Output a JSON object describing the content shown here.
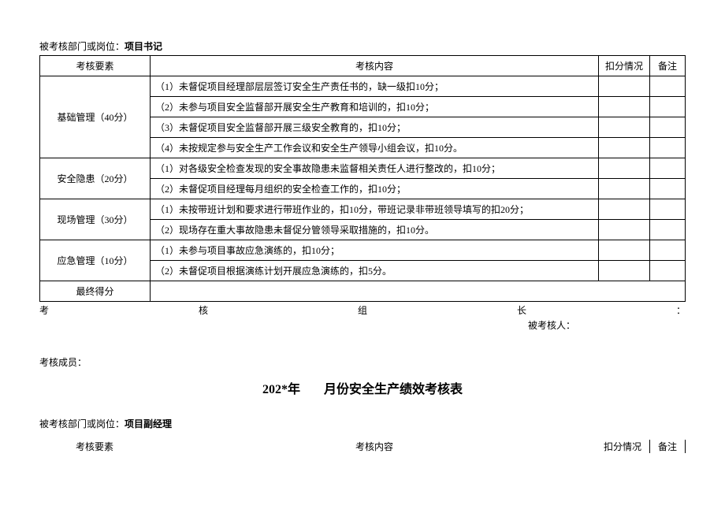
{
  "section1": {
    "header_label": "被考核部门或岗位：",
    "header_value": "项目书记",
    "table": {
      "headers": {
        "element": "考核要素",
        "content": "考核内容",
        "deduction": "扣分情况",
        "remark": "备注"
      },
      "groups": [
        {
          "element": "基础管理（40分）",
          "items": [
            "（1）未督促项目经理部层层签订安全生产责任书的，缺一级扣10分；",
            "（2）未参与项目安全监督部开展安全生产教育和培训的，扣10分；",
            "（3）未督促项目安全监督部开展三级安全教育的，扣10分；",
            "（4）未按规定参与安全生产工作会议和安全生产领导小组会议，扣10分。"
          ]
        },
        {
          "element": "安全隐患（20分）",
          "items": [
            "（1）对各级安全检查发现的安全事故隐患未监督相关责任人进行整改的，扣10分；",
            "（2）未督促项目经理每月组织的安全检查工作的，扣10分；"
          ]
        },
        {
          "element": "现场管理（30分）",
          "items": [
            "（1）未按带班计划和要求进行带班作业的，扣10分，带班记录非带班领导填写的扣20分；",
            "（2）现场存在重大事故隐患未督促分管领导采取措施的，扣10分。"
          ]
        },
        {
          "element": "应急管理（10分）",
          "items": [
            "（1）未参与项目事故应急演练的，扣10分；",
            "（2）未督促项目根据演练计划开展应急演练的，扣5分。"
          ]
        }
      ],
      "final_row": "最终得分"
    },
    "sig1_a": "考",
    "sig1_b": "核",
    "sig1_c": "组",
    "sig1_d": "长",
    "sig1_e": "：",
    "sig2": "被考核人：",
    "members": "考核成员："
  },
  "section2": {
    "title_prefix": "202*年",
    "title_suffix": "月份安全生产绩效考核表",
    "header_label": "被考核部门或岗位：",
    "header_value": "项目副经理",
    "headers": {
      "element": "考核要素",
      "content": "考核内容",
      "deduction": "扣分情况",
      "remark": "备注"
    }
  }
}
